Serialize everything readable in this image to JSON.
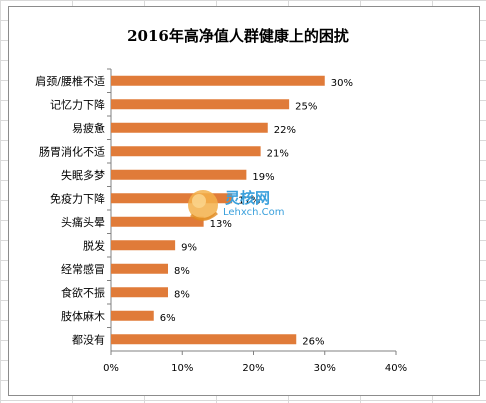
{
  "chart_data": {
    "type": "bar",
    "orientation": "horizontal",
    "title": "2016年高净值人群健康上的困扰",
    "categories": [
      "肩颈/腰椎不适",
      "记忆力下降",
      "易疲惫",
      "肠胃消化不适",
      "失眠多梦",
      "免疫力下降",
      "头痛头晕",
      "脱发",
      "经常感冒",
      "食欲不振",
      "肢体麻木",
      "都没有"
    ],
    "values": [
      30,
      25,
      22,
      21,
      19,
      17,
      13,
      9,
      8,
      8,
      6,
      26
    ],
    "value_labels": [
      "30%",
      "25%",
      "22%",
      "21%",
      "19%",
      "17%",
      "13%",
      "9%",
      "8%",
      "8%",
      "6%",
      "26%"
    ],
    "xlim": [
      0,
      40
    ],
    "xticks": [
      0,
      10,
      20,
      30,
      40
    ],
    "xtick_labels": [
      "0%",
      "10%",
      "20%",
      "30%",
      "40%"
    ],
    "bar_color": "#e07b39",
    "grid": false,
    "legend": "none"
  },
  "watermark": {
    "text_cn": "灵核网",
    "text_en": "Lehxch.Com",
    "color": "#3aa0dc",
    "accent": "#f0a020"
  }
}
